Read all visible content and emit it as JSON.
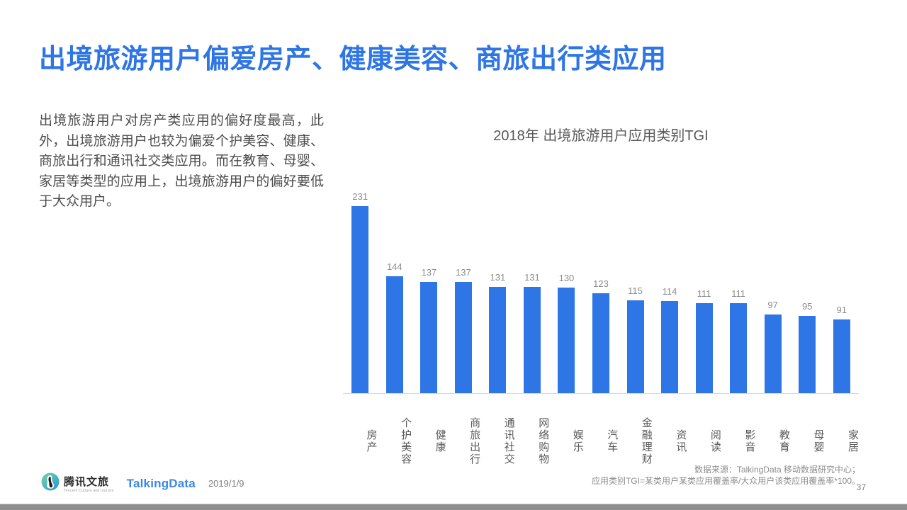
{
  "slide": {
    "title": "出境旅游用户偏爱房产、健康美容、商旅出行类应用",
    "paragraph": "出境旅游用户对房产类应用的偏好度最高，此外，出境旅游用户也较为偏爱个护美容、健康、商旅出行和通讯社交类应用。而在教育、母婴、家居等类型的应用上，出境旅游用户的偏好要低于大众用户。",
    "page_number": "37"
  },
  "chart_data": {
    "type": "bar",
    "title": "2018年 出境旅游用户应用类别TGI",
    "categories": [
      "房产",
      "个护美容",
      "健康",
      "商旅出行",
      "通讯社交",
      "网络购物",
      "娱乐",
      "汽车",
      "金融理财",
      "资讯",
      "阅读",
      "影音",
      "教育",
      "母婴",
      "家居"
    ],
    "values": [
      231,
      144,
      137,
      137,
      131,
      131,
      130,
      123,
      115,
      114,
      111,
      111,
      97,
      95,
      91
    ],
    "xlabel": "",
    "ylabel": "",
    "ylim": [
      0,
      240
    ],
    "grid": false,
    "legend": false,
    "bar_color": "#2e75e5",
    "value_labels_shown": true
  },
  "footer": {
    "tencent_brand_name": "腾讯文旅",
    "tencent_brand_sub": "Tencent Culture and tourism",
    "talkingdata_wordmark": "TalkingData",
    "date": "2019/1/9",
    "source_line1": "数据来源：TalkingData  移动数据研究中心；",
    "source_line2": "应用类别TGI=某类用户某类应用覆盖率/大众用户该类应用覆盖率*100。"
  },
  "colors": {
    "accent_blue": "#2e75e5",
    "body_text": "#4d4d4d",
    "muted_text": "#8c8c8c",
    "scrollbar_gray": "#8f8f8f"
  }
}
